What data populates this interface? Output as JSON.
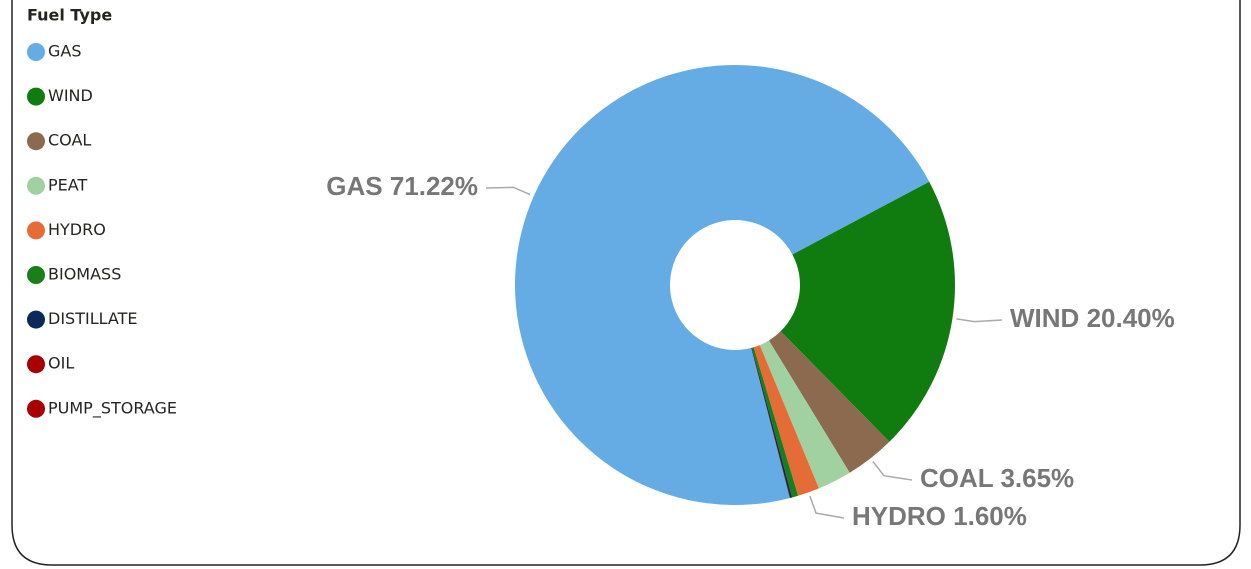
{
  "chart_data": {
    "type": "donut",
    "legend_title": "Fuel Type",
    "categories": [
      "GAS",
      "WIND",
      "COAL",
      "PEAT",
      "HYDRO",
      "BIOMASS",
      "DISTILLATE",
      "OIL",
      "PUMP_STORAGE"
    ],
    "values": [
      71.22,
      20.4,
      3.65,
      2.5,
      1.6,
      0.45,
      0.15,
      0.02,
      0.01
    ],
    "value_labels": [
      "71.22%",
      "20.40%",
      "3.65%",
      null,
      "1.60%",
      null,
      null,
      null,
      null
    ],
    "colors": [
      "#66ace4",
      "#107c10",
      "#8b6a50",
      "#a1d0a1",
      "#e66c37",
      "#1a7f1a",
      "#0b2a5b",
      "#a80000",
      "#a80000"
    ]
  }
}
